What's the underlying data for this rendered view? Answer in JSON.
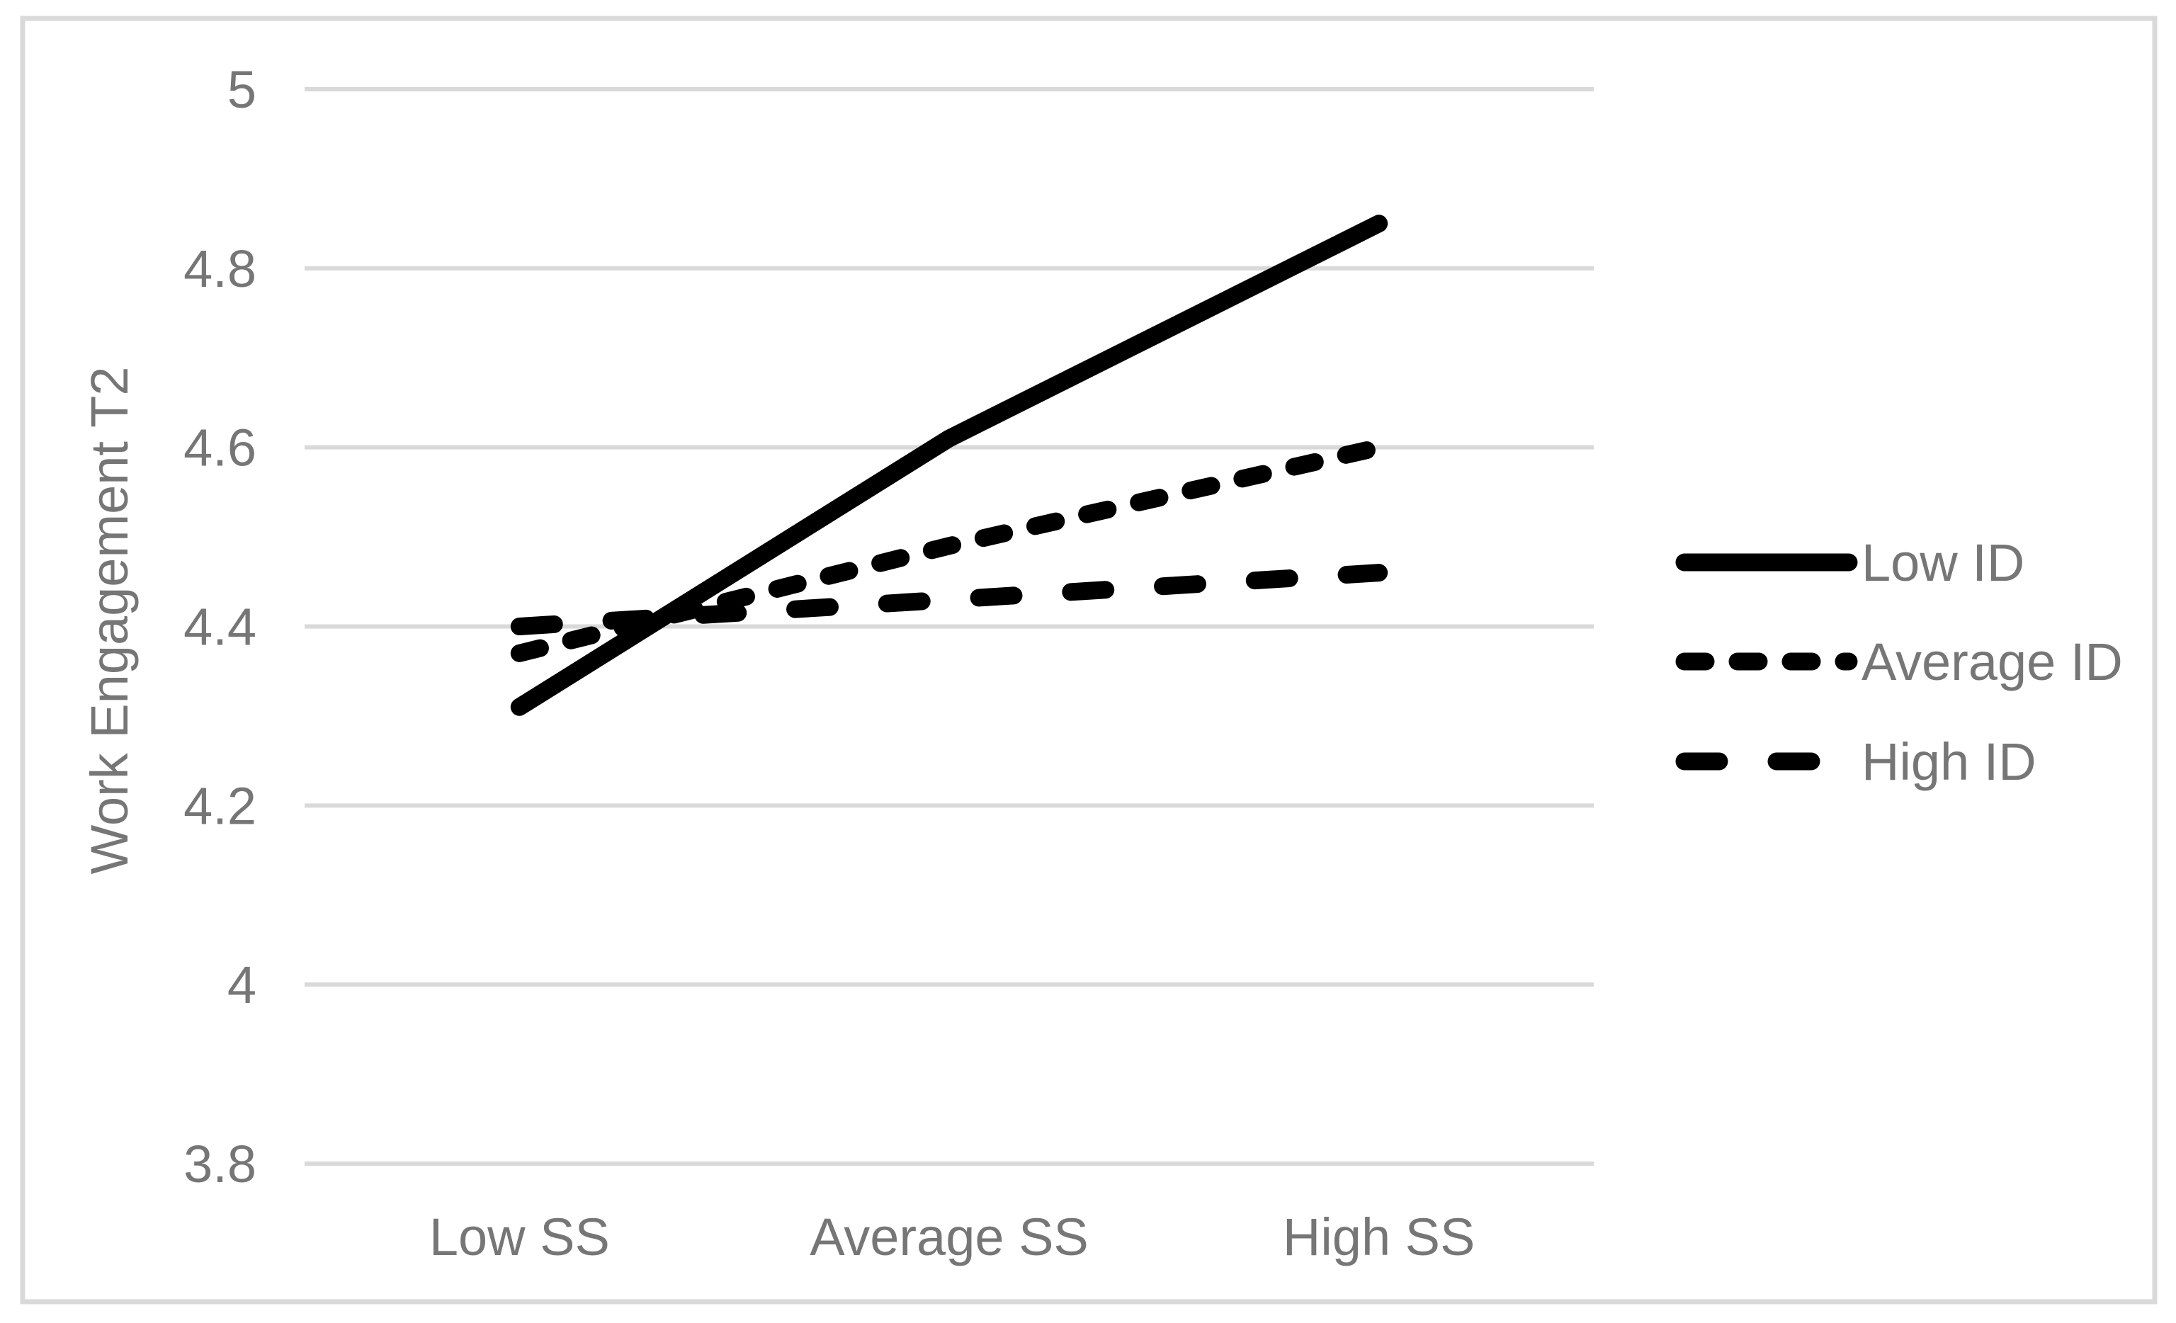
{
  "chart_data": {
    "type": "line",
    "title": "",
    "xlabel": "",
    "ylabel": "Work Engagement T2",
    "categories": [
      "Low SS",
      "Average SS",
      "High SS"
    ],
    "series": [
      {
        "name": "Low ID",
        "style": "solid",
        "values": [
          4.31,
          4.61,
          4.85
        ]
      },
      {
        "name": "Average ID",
        "style": "dash",
        "values": [
          4.37,
          4.49,
          4.6
        ]
      },
      {
        "name": "High ID",
        "style": "long-dash",
        "values": [
          4.4,
          4.43,
          4.46
        ]
      }
    ],
    "ylim": [
      3.8,
      5.0
    ],
    "yticks": [
      5,
      4.8,
      4.6,
      4.4,
      4.2,
      4,
      3.8
    ],
    "ytick_labels": [
      "5",
      "4.8",
      "4.6",
      "4.4",
      "4.2",
      "4",
      "3.8"
    ],
    "grid": "horizontal",
    "legend_position": "right",
    "colors": {
      "line": "#000000",
      "grid": "#d9d9d9",
      "frame": "#d9d9d9",
      "text": "#767676"
    }
  }
}
